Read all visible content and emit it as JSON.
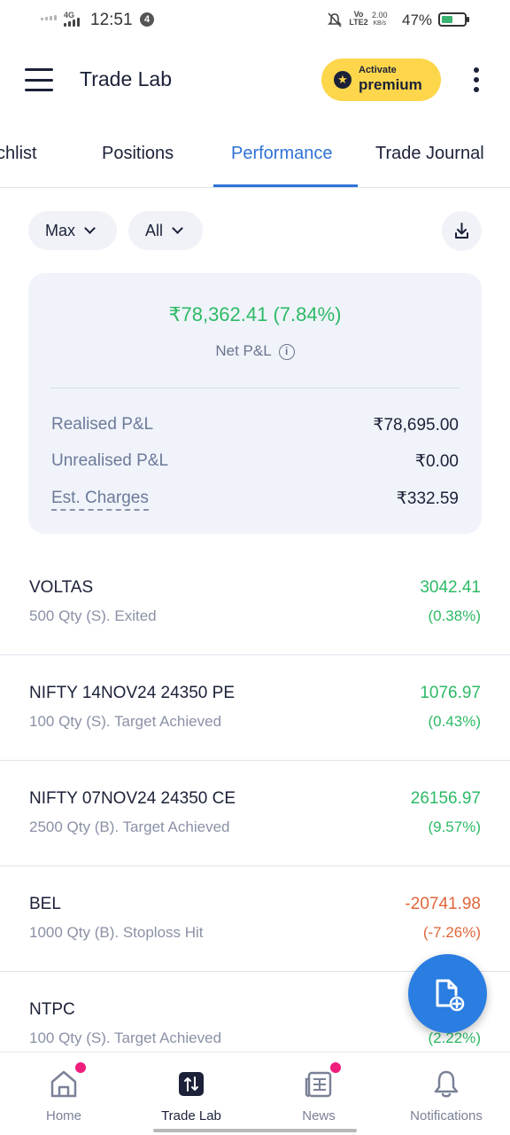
{
  "status_bar": {
    "network": "4G",
    "time": "12:51",
    "notification_count": "4",
    "volte": "Vo LTE2",
    "speed_value": "2.00",
    "speed_unit": "KB/s",
    "battery": "47%"
  },
  "header": {
    "title": "Trade Lab",
    "premium_small": "Activate",
    "premium_big": "premium"
  },
  "tabs": [
    {
      "label": "chlist"
    },
    {
      "label": "Positions"
    },
    {
      "label": "Performance",
      "active": true
    },
    {
      "label": "Trade Journal"
    }
  ],
  "filters": {
    "period": "Max",
    "type": "All"
  },
  "summary": {
    "net_value": "₹78,362.41 (7.84%)",
    "net_label": "Net P&L",
    "rows": [
      {
        "label": "Realised P&L",
        "value": "₹78,695.00"
      },
      {
        "label": "Unrealised P&L",
        "value": "₹0.00"
      },
      {
        "label": "Est. Charges",
        "value": "₹332.59"
      }
    ]
  },
  "trades": [
    {
      "name": "VOLTAS",
      "detail": "500 Qty (S). Exited",
      "pnl": "3042.41",
      "pct": "(0.38%)",
      "direction": "up"
    },
    {
      "name": "NIFTY 14NOV24 24350 PE",
      "detail": "100 Qty (S). Target Achieved",
      "pnl": "1076.97",
      "pct": "(0.43%)",
      "direction": "up"
    },
    {
      "name": "NIFTY 07NOV24 24350 CE",
      "detail": "2500 Qty (B). Target Achieved",
      "pnl": "26156.97",
      "pct": "(9.57%)",
      "direction": "up"
    },
    {
      "name": "BEL",
      "detail": "1000 Qty (B). Stoploss Hit",
      "pnl": "-20741.98",
      "pct": "(-7.26%)",
      "direction": "down"
    },
    {
      "name": "NTPC",
      "detail": "100 Qty (S). Target Achieved",
      "pnl": "",
      "pct": "(2.22%)",
      "direction": "up"
    }
  ],
  "bottom_nav": [
    {
      "label": "Home",
      "icon": "home-icon"
    },
    {
      "label": "Trade Lab",
      "icon": "trade-lab-icon",
      "active": true
    },
    {
      "label": "News",
      "icon": "news-icon"
    },
    {
      "label": "Notifications",
      "icon": "bell-icon"
    }
  ],
  "colors": {
    "accent": "#2f72d6",
    "profit": "#2dba66",
    "loss": "#e0663a",
    "premium": "#fdd64b",
    "fab": "#2a7de1",
    "badge_dot": "#ef1e7d"
  }
}
